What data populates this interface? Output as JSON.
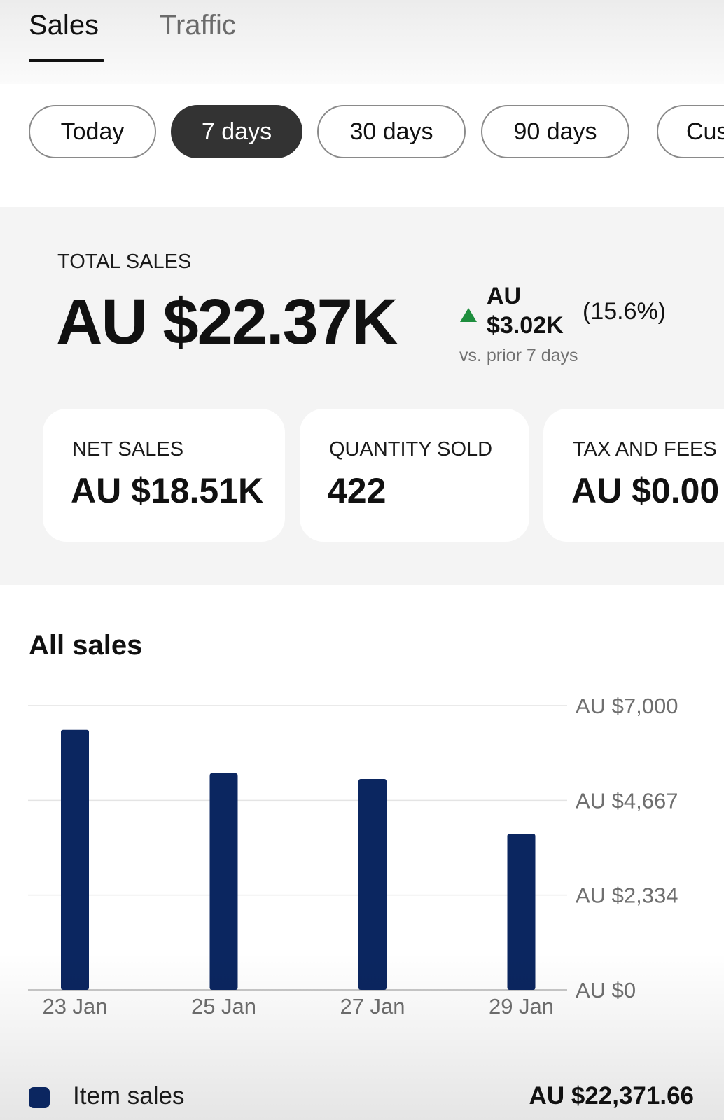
{
  "tabs": {
    "sales": "Sales",
    "traffic": "Traffic"
  },
  "ranges": {
    "today": "Today",
    "seven_days": "7 days",
    "thirty_days": "30 days",
    "ninety_days": "90 days",
    "custom": "Cus"
  },
  "summary": {
    "total_label": "TOTAL SALES",
    "total_value": "AU $22.37K",
    "delta_currency": "AU",
    "delta_amount": "$3.02K",
    "delta_percent": "(15.6%)",
    "delta_note": "vs. prior 7 days",
    "delta_color": "#1e8e3e"
  },
  "cards": {
    "net_sales_label": "NET SALES",
    "net_sales_value": "AU $18.51K",
    "quantity_label": "QUANTITY SOLD",
    "quantity_value": "422",
    "tax_label": "TAX AND FEES",
    "tax_value": "AU $0.00"
  },
  "section_title": "All sales",
  "chart_data": {
    "type": "bar",
    "categories": [
      "23 Jan",
      "25 Jan",
      "27 Jan",
      "29 Jan"
    ],
    "series": [
      {
        "name": "Item sales",
        "values": [
          6400,
          5330,
          5190,
          3840
        ],
        "color": "#0b2660"
      }
    ],
    "y_ticks": [
      "AU $7,000",
      "AU $4,667",
      "AU $2,334",
      "AU $0"
    ],
    "ylim": [
      0,
      7000
    ],
    "grid": true,
    "y_axis_side": "right"
  },
  "legend": {
    "label": "Item sales",
    "total": "AU $22,371.66"
  }
}
